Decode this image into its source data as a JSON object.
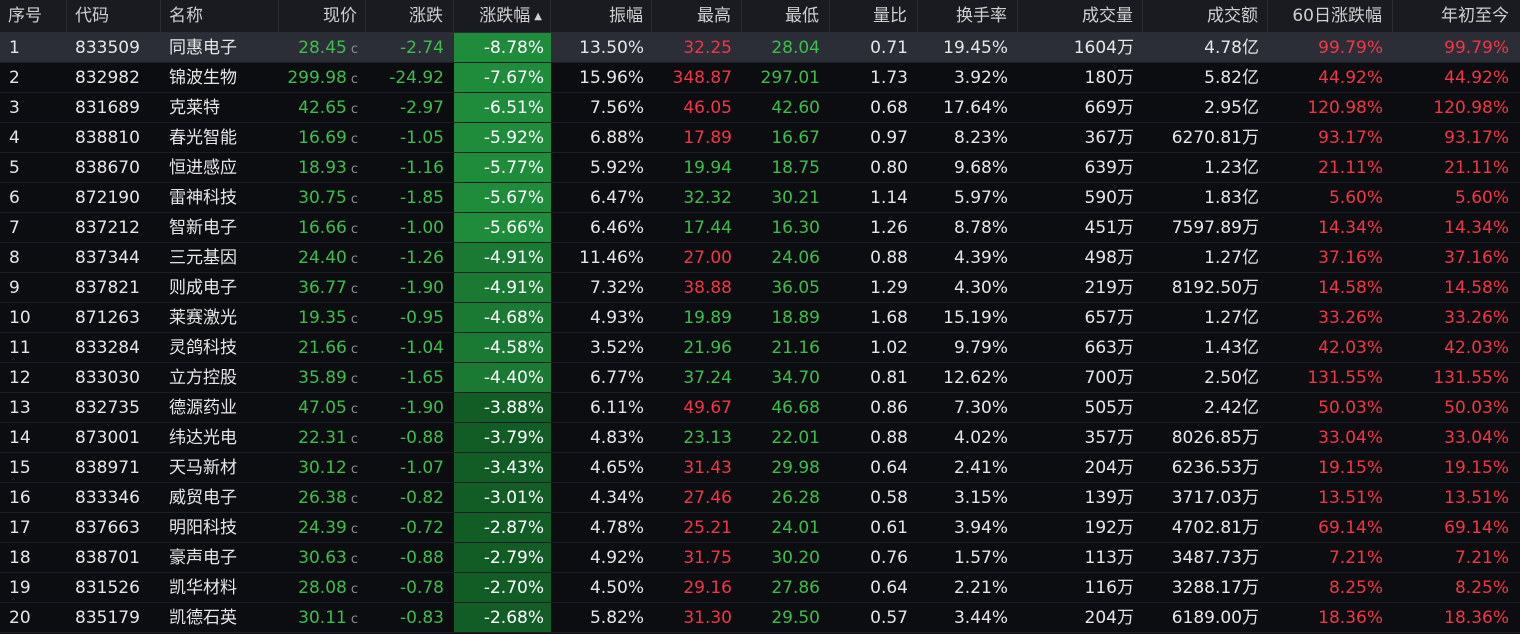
{
  "colors": {
    "up": "#f23645",
    "down": "#3cbf4a",
    "neutral": "#e6e6e6",
    "pct_strong": "#1e8c3a",
    "pct_mid": "#1a7a33",
    "pct_weak": "#125c26"
  },
  "header": {
    "idx": "序号",
    "code": "代码",
    "name": "名称",
    "price": "现价",
    "chg": "涨跌",
    "pct": "涨跌幅",
    "pct_sort_icon": "sort-up-icon",
    "amp": "振幅",
    "high": "最高",
    "low": "最低",
    "vr": "量比",
    "turn": "换手率",
    "vol": "成交量",
    "amt": "成交额",
    "d60": "60日涨跌幅",
    "ytd": "年初至今"
  },
  "rows": [
    {
      "idx": "1",
      "code": "833509",
      "name": "同惠电子",
      "price": "28.45",
      "mark": "c",
      "chg": "-2.74",
      "pct": "-8.78%",
      "amp": "13.50%",
      "high": "32.25",
      "high_dir": "up",
      "low": "28.04",
      "low_dir": "down",
      "vr": "0.71",
      "turn": "19.45%",
      "vol": "1604万",
      "amt": "4.78亿",
      "d60": "99.79%",
      "ytd": "99.79%"
    },
    {
      "idx": "2",
      "code": "832982",
      "name": "锦波生物",
      "price": "299.98",
      "mark": "c",
      "chg": "-24.92",
      "pct": "-7.67%",
      "amp": "15.96%",
      "high": "348.87",
      "high_dir": "up",
      "low": "297.01",
      "low_dir": "down",
      "vr": "1.73",
      "turn": "3.92%",
      "vol": "180万",
      "amt": "5.82亿",
      "d60": "44.92%",
      "ytd": "44.92%"
    },
    {
      "idx": "3",
      "code": "831689",
      "name": "克莱特",
      "price": "42.65",
      "mark": "c",
      "chg": "-2.97",
      "pct": "-6.51%",
      "amp": "7.56%",
      "high": "46.05",
      "high_dir": "up",
      "low": "42.60",
      "low_dir": "down",
      "vr": "0.68",
      "turn": "17.64%",
      "vol": "669万",
      "amt": "2.95亿",
      "d60": "120.98%",
      "ytd": "120.98%"
    },
    {
      "idx": "4",
      "code": "838810",
      "name": "春光智能",
      "price": "16.69",
      "mark": "c",
      "chg": "-1.05",
      "pct": "-5.92%",
      "amp": "6.88%",
      "high": "17.89",
      "high_dir": "up",
      "low": "16.67",
      "low_dir": "down",
      "vr": "0.97",
      "turn": "8.23%",
      "vol": "367万",
      "amt": "6270.81万",
      "d60": "93.17%",
      "ytd": "93.17%"
    },
    {
      "idx": "5",
      "code": "838670",
      "name": "恒进感应",
      "price": "18.93",
      "mark": "c",
      "chg": "-1.16",
      "pct": "-5.77%",
      "amp": "5.92%",
      "high": "19.94",
      "high_dir": "down",
      "low": "18.75",
      "low_dir": "down",
      "vr": "0.80",
      "turn": "9.68%",
      "vol": "639万",
      "amt": "1.23亿",
      "d60": "21.11%",
      "ytd": "21.11%"
    },
    {
      "idx": "6",
      "code": "872190",
      "name": "雷神科技",
      "price": "30.75",
      "mark": "c",
      "chg": "-1.85",
      "pct": "-5.67%",
      "amp": "6.47%",
      "high": "32.32",
      "high_dir": "down",
      "low": "30.21",
      "low_dir": "down",
      "vr": "1.14",
      "turn": "5.97%",
      "vol": "590万",
      "amt": "1.83亿",
      "d60": "5.60%",
      "ytd": "5.60%"
    },
    {
      "idx": "7",
      "code": "837212",
      "name": "智新电子",
      "price": "16.66",
      "mark": "c",
      "chg": "-1.00",
      "pct": "-5.66%",
      "amp": "6.46%",
      "high": "17.44",
      "high_dir": "down",
      "low": "16.30",
      "low_dir": "down",
      "vr": "1.26",
      "turn": "8.78%",
      "vol": "451万",
      "amt": "7597.89万",
      "d60": "14.34%",
      "ytd": "14.34%"
    },
    {
      "idx": "8",
      "code": "837344",
      "name": "三元基因",
      "price": "24.40",
      "mark": "c",
      "chg": "-1.26",
      "pct": "-4.91%",
      "amp": "11.46%",
      "high": "27.00",
      "high_dir": "up",
      "low": "24.06",
      "low_dir": "down",
      "vr": "0.88",
      "turn": "4.39%",
      "vol": "498万",
      "amt": "1.27亿",
      "d60": "37.16%",
      "ytd": "37.16%"
    },
    {
      "idx": "9",
      "code": "837821",
      "name": "则成电子",
      "price": "36.77",
      "mark": "c",
      "chg": "-1.90",
      "pct": "-4.91%",
      "amp": "7.32%",
      "high": "38.88",
      "high_dir": "up",
      "low": "36.05",
      "low_dir": "down",
      "vr": "1.29",
      "turn": "4.30%",
      "vol": "219万",
      "amt": "8192.50万",
      "d60": "14.58%",
      "ytd": "14.58%"
    },
    {
      "idx": "10",
      "code": "871263",
      "name": "莱赛激光",
      "price": "19.35",
      "mark": "c",
      "chg": "-0.95",
      "pct": "-4.68%",
      "amp": "4.93%",
      "high": "19.89",
      "high_dir": "down",
      "low": "18.89",
      "low_dir": "down",
      "vr": "1.68",
      "turn": "15.19%",
      "vol": "657万",
      "amt": "1.27亿",
      "d60": "33.26%",
      "ytd": "33.26%"
    },
    {
      "idx": "11",
      "code": "833284",
      "name": "灵鸽科技",
      "price": "21.66",
      "mark": "c",
      "chg": "-1.04",
      "pct": "-4.58%",
      "amp": "3.52%",
      "high": "21.96",
      "high_dir": "down",
      "low": "21.16",
      "low_dir": "down",
      "vr": "1.02",
      "turn": "9.79%",
      "vol": "663万",
      "amt": "1.43亿",
      "d60": "42.03%",
      "ytd": "42.03%"
    },
    {
      "idx": "12",
      "code": "833030",
      "name": "立方控股",
      "price": "35.89",
      "mark": "c",
      "chg": "-1.65",
      "pct": "-4.40%",
      "amp": "6.77%",
      "high": "37.24",
      "high_dir": "down",
      "low": "34.70",
      "low_dir": "down",
      "vr": "0.81",
      "turn": "12.62%",
      "vol": "700万",
      "amt": "2.50亿",
      "d60": "131.55%",
      "ytd": "131.55%"
    },
    {
      "idx": "13",
      "code": "832735",
      "name": "德源药业",
      "price": "47.05",
      "mark": "c",
      "chg": "-1.90",
      "pct": "-3.88%",
      "amp": "6.11%",
      "high": "49.67",
      "high_dir": "up",
      "low": "46.68",
      "low_dir": "down",
      "vr": "0.86",
      "turn": "7.30%",
      "vol": "505万",
      "amt": "2.42亿",
      "d60": "50.03%",
      "ytd": "50.03%"
    },
    {
      "idx": "14",
      "code": "873001",
      "name": "纬达光电",
      "price": "22.31",
      "mark": "c",
      "chg": "-0.88",
      "pct": "-3.79%",
      "amp": "4.83%",
      "high": "23.13",
      "high_dir": "down",
      "low": "22.01",
      "low_dir": "down",
      "vr": "0.88",
      "turn": "4.02%",
      "vol": "357万",
      "amt": "8026.85万",
      "d60": "33.04%",
      "ytd": "33.04%"
    },
    {
      "idx": "15",
      "code": "838971",
      "name": "天马新材",
      "price": "30.12",
      "mark": "c",
      "chg": "-1.07",
      "pct": "-3.43%",
      "amp": "4.65%",
      "high": "31.43",
      "high_dir": "up",
      "low": "29.98",
      "low_dir": "down",
      "vr": "0.64",
      "turn": "2.41%",
      "vol": "204万",
      "amt": "6236.53万",
      "d60": "19.15%",
      "ytd": "19.15%"
    },
    {
      "idx": "16",
      "code": "833346",
      "name": "威贸电子",
      "price": "26.38",
      "mark": "c",
      "chg": "-0.82",
      "pct": "-3.01%",
      "amp": "4.34%",
      "high": "27.46",
      "high_dir": "up",
      "low": "26.28",
      "low_dir": "down",
      "vr": "0.58",
      "turn": "3.15%",
      "vol": "139万",
      "amt": "3717.03万",
      "d60": "13.51%",
      "ytd": "13.51%"
    },
    {
      "idx": "17",
      "code": "837663",
      "name": "明阳科技",
      "price": "24.39",
      "mark": "c",
      "chg": "-0.72",
      "pct": "-2.87%",
      "amp": "4.78%",
      "high": "25.21",
      "high_dir": "up",
      "low": "24.01",
      "low_dir": "down",
      "vr": "0.61",
      "turn": "3.94%",
      "vol": "192万",
      "amt": "4702.81万",
      "d60": "69.14%",
      "ytd": "69.14%"
    },
    {
      "idx": "18",
      "code": "838701",
      "name": "豪声电子",
      "price": "30.63",
      "mark": "c",
      "chg": "-0.88",
      "pct": "-2.79%",
      "amp": "4.92%",
      "high": "31.75",
      "high_dir": "up",
      "low": "30.20",
      "low_dir": "down",
      "vr": "0.76",
      "turn": "1.57%",
      "vol": "113万",
      "amt": "3487.73万",
      "d60": "7.21%",
      "ytd": "7.21%"
    },
    {
      "idx": "19",
      "code": "831526",
      "name": "凯华材料",
      "price": "28.08",
      "mark": "c",
      "chg": "-0.78",
      "pct": "-2.70%",
      "amp": "4.50%",
      "high": "29.16",
      "high_dir": "up",
      "low": "27.86",
      "low_dir": "down",
      "vr": "0.64",
      "turn": "2.21%",
      "vol": "116万",
      "amt": "3288.17万",
      "d60": "8.25%",
      "ytd": "8.25%"
    },
    {
      "idx": "20",
      "code": "835179",
      "name": "凯德石英",
      "price": "30.11",
      "mark": "c",
      "chg": "-0.83",
      "pct": "-2.68%",
      "amp": "5.82%",
      "high": "31.30",
      "high_dir": "up",
      "low": "29.50",
      "low_dir": "down",
      "vr": "0.57",
      "turn": "3.44%",
      "vol": "204万",
      "amt": "6189.00万",
      "d60": "18.36%",
      "ytd": "18.36%"
    }
  ]
}
